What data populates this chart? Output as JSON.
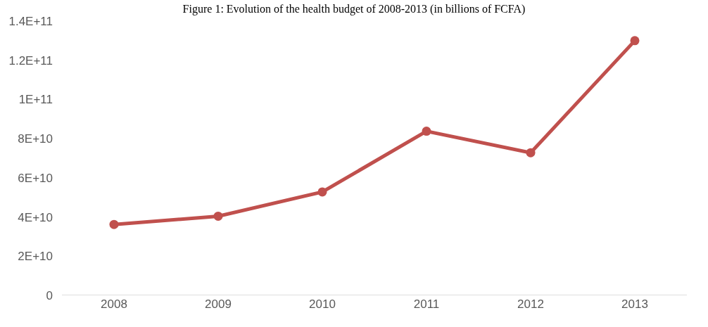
{
  "chart_data": {
    "type": "line",
    "title": "Figure 1: Evolution of the health budget of 2008-2013 (in billions of FCFA)",
    "categories": [
      "2008",
      "2009",
      "2010",
      "2011",
      "2012",
      "2013"
    ],
    "series": [
      {
        "color": "#c0504d",
        "values": [
          36200000000,
          40400000000,
          52800000000,
          83800000000,
          72800000000,
          130000000000
        ]
      }
    ],
    "ylim": [
      0,
      140000000000
    ],
    "yticks": [
      0,
      {
        "value": 20000000000,
        "label": "2E+10"
      },
      {
        "value": 40000000000,
        "label": "4E+10"
      },
      {
        "value": 60000000000,
        "label": "6E+10"
      },
      {
        "value": 80000000000,
        "label": "8E+10"
      },
      {
        "value": 100000000000,
        "label": "1E+11"
      },
      {
        "value": 120000000000,
        "label": "1.2E+11"
      },
      {
        "value": 140000000000,
        "label": "1.4E+11"
      }
    ],
    "grid": false,
    "legend": false,
    "marker": "circle",
    "line_style": "solid"
  }
}
